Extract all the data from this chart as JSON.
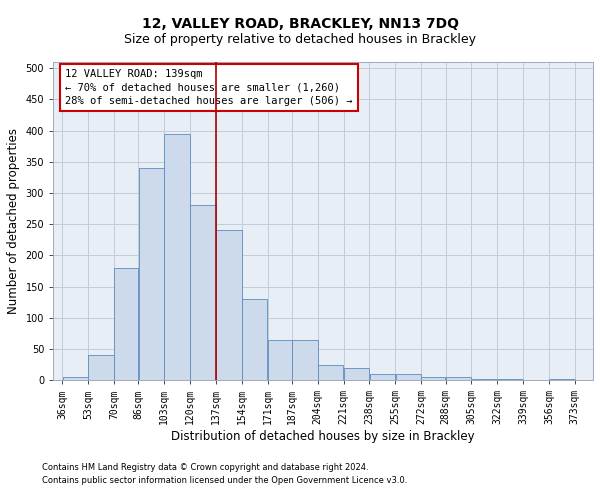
{
  "title": "12, VALLEY ROAD, BRACKLEY, NN13 7DQ",
  "subtitle": "Size of property relative to detached houses in Brackley",
  "xlabel": "Distribution of detached houses by size in Brackley",
  "ylabel": "Number of detached properties",
  "footnote1": "Contains HM Land Registry data © Crown copyright and database right 2024.",
  "footnote2": "Contains public sector information licensed under the Open Government Licence v3.0.",
  "property_label": "12 VALLEY ROAD: 139sqm",
  "annotation_line1": "← 70% of detached houses are smaller (1,260)",
  "annotation_line2": "28% of semi-detached houses are larger (506) →",
  "bar_left_edges": [
    36,
    53,
    70,
    86,
    103,
    120,
    137,
    154,
    171,
    187,
    204,
    221,
    238,
    255,
    272,
    288,
    305,
    322,
    339,
    356
  ],
  "bar_widths": [
    17,
    17,
    16,
    17,
    17,
    17,
    17,
    17,
    16,
    17,
    17,
    17,
    17,
    17,
    16,
    17,
    17,
    17,
    17,
    17
  ],
  "bar_heights": [
    5,
    40,
    180,
    340,
    395,
    280,
    240,
    130,
    65,
    65,
    25,
    20,
    10,
    10,
    5,
    5,
    2,
    2,
    0,
    2
  ],
  "bar_color": "#ccdaeb",
  "bar_edge_color": "#5b8bbf",
  "ref_line_color": "#aa0000",
  "ref_line_x": 137,
  "ylim": [
    0,
    510
  ],
  "yticks": [
    0,
    50,
    100,
    150,
    200,
    250,
    300,
    350,
    400,
    450,
    500
  ],
  "xlim": [
    30,
    385
  ],
  "xtick_labels": [
    "36sqm",
    "53sqm",
    "70sqm",
    "86sqm",
    "103sqm",
    "120sqm",
    "137sqm",
    "154sqm",
    "171sqm",
    "187sqm",
    "204sqm",
    "221sqm",
    "238sqm",
    "255sqm",
    "272sqm",
    "288sqm",
    "305sqm",
    "322sqm",
    "339sqm",
    "356sqm",
    "373sqm"
  ],
  "xtick_positions": [
    36,
    53,
    70,
    86,
    103,
    120,
    137,
    154,
    171,
    187,
    204,
    221,
    238,
    255,
    272,
    288,
    305,
    322,
    339,
    356,
    373
  ],
  "grid_color": "#c0ccd8",
  "bg_color": "#e8eef5",
  "annotation_box_color": "#cc0000",
  "title_fontsize": 10,
  "subtitle_fontsize": 9,
  "ylabel_fontsize": 8.5,
  "xlabel_fontsize": 8.5,
  "tick_fontsize": 7,
  "annotation_fontsize": 7.5,
  "footnote_fontsize": 6
}
